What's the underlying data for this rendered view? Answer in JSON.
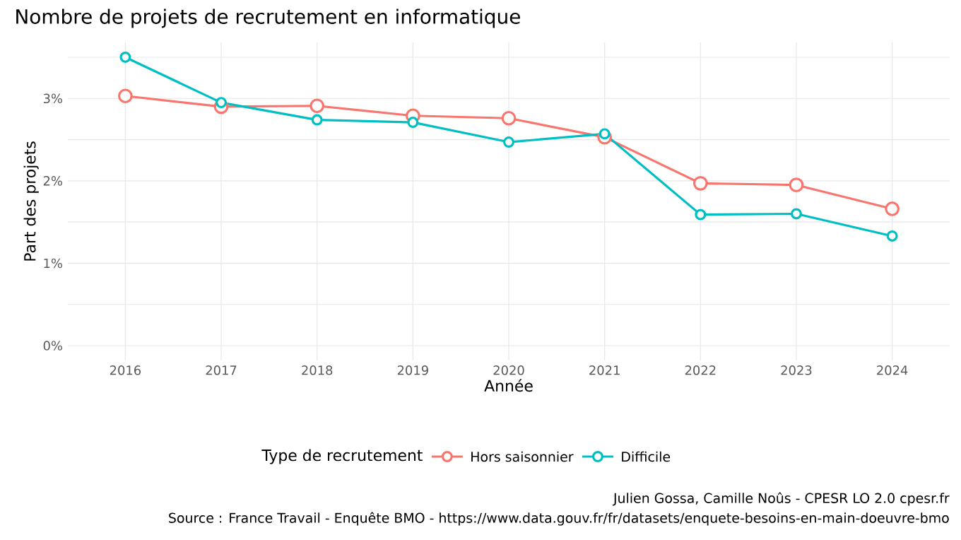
{
  "chart_data": {
    "type": "line",
    "title": "Nombre de projets de recrutement en informatique",
    "xlabel": "Année",
    "ylabel": "Part des projets",
    "legend_title": "Type de recrutement",
    "x": [
      2016,
      2017,
      2018,
      2019,
      2020,
      2021,
      2022,
      2023,
      2024
    ],
    "series": [
      {
        "name": "Hors saisonnier",
        "color": "#f8766d",
        "values": [
          3.03,
          2.9,
          2.91,
          2.79,
          2.76,
          2.53,
          1.97,
          1.95,
          1.66
        ]
      },
      {
        "name": "Difficile",
        "color": "#00bfc4",
        "values": [
          3.5,
          2.95,
          2.74,
          2.71,
          2.47,
          2.57,
          1.59,
          1.6,
          1.33
        ]
      }
    ],
    "xlim": [
      2015.4,
      2024.6
    ],
    "ylim": [
      -0.18,
      3.68
    ],
    "xticks": [
      2016,
      2017,
      2018,
      2019,
      2020,
      2021,
      2022,
      2023,
      2024
    ],
    "yticks": [
      {
        "value": 0,
        "label": "0%"
      },
      {
        "value": 0.5,
        "label": null
      },
      {
        "value": 1,
        "label": "1%"
      },
      {
        "value": 1.5,
        "label": null
      },
      {
        "value": 2,
        "label": "2%"
      },
      {
        "value": 2.5,
        "label": null
      },
      {
        "value": 3,
        "label": "3%"
      },
      {
        "value": 3.5,
        "label": null
      }
    ],
    "grid": true,
    "legend": "bottom",
    "marker": "circle",
    "line_style": "solid",
    "annotations": [
      "Julien Gossa, Camille Noûs - CPESR LO 2.0 cpesr.fr",
      "Source : France Travail - Enquête BMO -  https://www.data.gouv.fr/fr/datasets/enquete-besoins-en-main-doeuvre-bmo"
    ]
  }
}
